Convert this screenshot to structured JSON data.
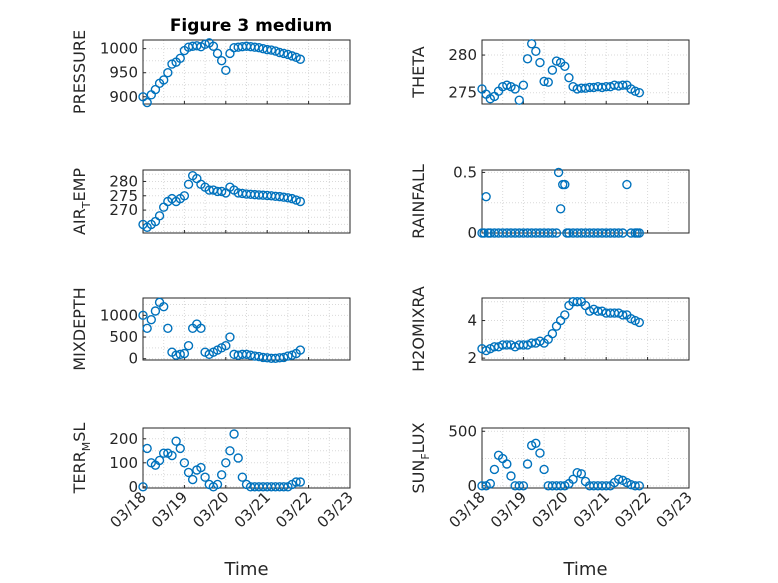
{
  "figure_title": "Figure 3 medium",
  "colors": {
    "marker": "#0072bd",
    "axes": "#262626",
    "grid": "#d9d9d9"
  },
  "chart_data": [
    {
      "id": "pressure",
      "type": "scatter",
      "title": "Figure 3 medium",
      "ylabel": {
        "main": "PRESSURE",
        "sub": "",
        "rest": ""
      },
      "xlabel": "",
      "xlim": [
        0,
        5
      ],
      "ylim": [
        885,
        1018
      ],
      "yticks": [
        900,
        950,
        1000
      ],
      "ytick_labels": [
        "900",
        "950",
        "1000"
      ],
      "xticks": [
        0,
        1,
        2,
        3,
        4,
        5
      ],
      "xtick_labels": [],
      "grid": true,
      "x": [
        0,
        0.1,
        0.2,
        0.3,
        0.4,
        0.5,
        0.6,
        0.7,
        0.8,
        0.9,
        1.0,
        1.1,
        1.2,
        1.3,
        1.4,
        1.5,
        1.6,
        1.7,
        1.8,
        1.9,
        2.0,
        2.1,
        2.2,
        2.3,
        2.4,
        2.5,
        2.6,
        2.7,
        2.8,
        2.9,
        3.0,
        3.1,
        3.2,
        3.3,
        3.4,
        3.5,
        3.6,
        3.7,
        3.8
      ],
      "y": [
        900,
        888,
        904,
        915,
        928,
        935,
        950,
        968,
        972,
        980,
        996,
        1003,
        1005,
        1006,
        1004,
        1009,
        1012,
        1005,
        990,
        975,
        955,
        990,
        1002,
        1003,
        1004,
        1005,
        1004,
        1003,
        1002,
        1000,
        998,
        997,
        995,
        992,
        990,
        988,
        985,
        982,
        978
      ]
    },
    {
      "id": "theta",
      "type": "scatter",
      "ylabel": {
        "main": "THETA",
        "sub": "",
        "rest": ""
      },
      "xlabel": "",
      "xlim": [
        0,
        5
      ],
      "ylim": [
        273.5,
        282
      ],
      "yticks": [
        275,
        280
      ],
      "ytick_labels": [
        "275",
        "280"
      ],
      "xticks": [
        0,
        1,
        2,
        3,
        4,
        5
      ],
      "xtick_labels": [],
      "grid": true,
      "x": [
        0,
        0.1,
        0.2,
        0.3,
        0.4,
        0.5,
        0.6,
        0.7,
        0.8,
        0.9,
        1.0,
        1.1,
        1.2,
        1.3,
        1.4,
        1.5,
        1.6,
        1.7,
        1.8,
        1.9,
        2.0,
        2.1,
        2.2,
        2.3,
        2.4,
        2.5,
        2.6,
        2.7,
        2.8,
        2.9,
        3.0,
        3.1,
        3.2,
        3.3,
        3.4,
        3.5,
        3.6,
        3.7,
        3.8
      ],
      "y": [
        275.5,
        274.8,
        274.2,
        274.5,
        275.2,
        275.8,
        276.0,
        275.8,
        275.5,
        274.0,
        276.0,
        279.5,
        281.5,
        280.5,
        279.0,
        276.5,
        276.4,
        278.0,
        279.2,
        279.0,
        278.5,
        277.0,
        275.8,
        275.5,
        275.6,
        275.6,
        275.7,
        275.7,
        275.8,
        275.7,
        275.8,
        275.8,
        276.0,
        275.9,
        276.0,
        276.0,
        275.5,
        275.2,
        275.0
      ]
    },
    {
      "id": "air_temp",
      "type": "scatter",
      "ylabel": {
        "main": "AIR",
        "sub": "T",
        "rest": "EMP"
      },
      "xlabel": "",
      "xlim": [
        0,
        5
      ],
      "ylim": [
        262,
        284
      ],
      "yticks": [
        270,
        275,
        280
      ],
      "ytick_labels": [
        "270",
        "275",
        "280"
      ],
      "xticks": [
        0,
        1,
        2,
        3,
        4,
        5
      ],
      "xtick_labels": [],
      "grid": true,
      "x": [
        0,
        0.1,
        0.2,
        0.3,
        0.4,
        0.5,
        0.6,
        0.7,
        0.8,
        0.9,
        1.0,
        1.1,
        1.2,
        1.3,
        1.4,
        1.5,
        1.6,
        1.7,
        1.8,
        1.9,
        2.0,
        2.1,
        2.2,
        2.3,
        2.4,
        2.5,
        2.6,
        2.7,
        2.8,
        2.9,
        3.0,
        3.1,
        3.2,
        3.3,
        3.4,
        3.5,
        3.6,
        3.7,
        3.8
      ],
      "y": [
        265,
        264,
        265,
        266,
        268,
        271,
        273,
        274,
        273,
        274,
        275,
        279,
        282,
        281,
        279,
        278,
        277,
        277,
        276.5,
        276.5,
        276,
        278,
        277,
        276,
        275.8,
        275.6,
        275.5,
        275.4,
        275.3,
        275.2,
        275.1,
        275.0,
        274.8,
        274.7,
        274.5,
        274.3,
        274.0,
        273.5,
        273
      ]
    },
    {
      "id": "rainfall",
      "type": "scatter",
      "ylabel": {
        "main": "RAINFALL",
        "sub": "",
        "rest": ""
      },
      "xlabel": "",
      "xlim": [
        0,
        5
      ],
      "ylim": [
        0,
        0.52
      ],
      "yticks": [
        0,
        0.5
      ],
      "ytick_labels": [
        "0",
        "0.5"
      ],
      "xticks": [
        0,
        1,
        2,
        3,
        4,
        5
      ],
      "xtick_labels": [],
      "grid": true,
      "x": [
        0,
        0.05,
        0.1,
        0.15,
        0.2,
        0.3,
        0.4,
        0.5,
        0.6,
        0.7,
        0.8,
        0.9,
        1.0,
        1.1,
        1.2,
        1.3,
        1.4,
        1.5,
        1.6,
        1.7,
        1.8,
        1.85,
        1.9,
        1.95,
        2.0,
        2.05,
        2.1,
        2.2,
        2.3,
        2.4,
        2.5,
        2.6,
        2.7,
        2.8,
        2.9,
        3.0,
        3.1,
        3.2,
        3.3,
        3.4,
        3.5,
        3.6,
        3.7,
        3.75,
        3.8
      ],
      "y": [
        0,
        0,
        0.3,
        0,
        0,
        0,
        0,
        0,
        0,
        0,
        0,
        0,
        0,
        0,
        0,
        0,
        0,
        0,
        0,
        0,
        0,
        0.5,
        0.2,
        0.4,
        0.4,
        0,
        0,
        0,
        0,
        0,
        0,
        0,
        0,
        0,
        0,
        0,
        0,
        0,
        0,
        0,
        0.4,
        0,
        0,
        0,
        0
      ]
    },
    {
      "id": "mixdepth",
      "type": "scatter",
      "ylabel": {
        "main": "MIXDEPTH",
        "sub": "",
        "rest": ""
      },
      "xlabel": "",
      "xlim": [
        0,
        5
      ],
      "ylim": [
        -30,
        1400
      ],
      "yticks": [
        0,
        500,
        1000
      ],
      "ytick_labels": [
        "0",
        "500",
        "1000"
      ],
      "xticks": [
        0,
        1,
        2,
        3,
        4,
        5
      ],
      "xtick_labels": [],
      "grid": true,
      "x": [
        0,
        0.1,
        0.2,
        0.3,
        0.4,
        0.5,
        0.6,
        0.7,
        0.8,
        0.9,
        1.0,
        1.1,
        1.2,
        1.3,
        1.4,
        1.5,
        1.6,
        1.7,
        1.8,
        1.9,
        2.0,
        2.1,
        2.2,
        2.3,
        2.4,
        2.5,
        2.6,
        2.7,
        2.8,
        2.9,
        3.0,
        3.1,
        3.2,
        3.3,
        3.4,
        3.5,
        3.6,
        3.7,
        3.8
      ],
      "y": [
        1000,
        700,
        900,
        1100,
        1300,
        1200,
        700,
        150,
        80,
        100,
        120,
        300,
        700,
        800,
        700,
        150,
        100,
        150,
        200,
        250,
        300,
        500,
        100,
        80,
        100,
        100,
        80,
        60,
        50,
        30,
        20,
        10,
        10,
        20,
        30,
        60,
        80,
        120,
        200
      ]
    },
    {
      "id": "h2omixra",
      "type": "scatter",
      "ylabel": {
        "main": "H2OMIXRA",
        "sub": "",
        "rest": ""
      },
      "xlabel": "",
      "xlim": [
        0,
        5
      ],
      "ylim": [
        1.9,
        5.2
      ],
      "yticks": [
        2,
        4
      ],
      "ytick_labels": [
        "2",
        "4"
      ],
      "xticks": [
        0,
        1,
        2,
        3,
        4,
        5
      ],
      "xtick_labels": [],
      "grid": true,
      "x": [
        0,
        0.1,
        0.2,
        0.3,
        0.4,
        0.5,
        0.6,
        0.7,
        0.8,
        0.9,
        1.0,
        1.1,
        1.2,
        1.3,
        1.4,
        1.5,
        1.6,
        1.7,
        1.8,
        1.9,
        2.0,
        2.1,
        2.2,
        2.3,
        2.4,
        2.5,
        2.6,
        2.7,
        2.8,
        2.9,
        3.0,
        3.1,
        3.2,
        3.3,
        3.4,
        3.5,
        3.6,
        3.7,
        3.8
      ],
      "y": [
        2.5,
        2.4,
        2.5,
        2.6,
        2.6,
        2.7,
        2.7,
        2.7,
        2.6,
        2.7,
        2.7,
        2.7,
        2.8,
        2.8,
        2.9,
        2.8,
        3.0,
        3.3,
        3.7,
        4.0,
        4.3,
        4.8,
        5.0,
        5.0,
        5.0,
        4.8,
        4.5,
        4.6,
        4.5,
        4.5,
        4.4,
        4.4,
        4.4,
        4.4,
        4.3,
        4.3,
        4.1,
        4.0,
        3.9
      ]
    },
    {
      "id": "terr_msl",
      "type": "scatter",
      "ylabel": {
        "main": "TERR",
        "sub": "M",
        "rest": "SL"
      },
      "xlabel": "Time",
      "xlim": [
        0,
        5
      ],
      "ylim": [
        -5,
        245
      ],
      "yticks": [
        0,
        100,
        200
      ],
      "ytick_labels": [
        "0",
        "100",
        "200"
      ],
      "xticks": [
        0,
        1,
        2,
        3,
        4,
        5
      ],
      "xtick_labels": [
        "03/18",
        "03/19",
        "03/20",
        "03/21",
        "03/22",
        "03/23"
      ],
      "grid": true,
      "x": [
        0,
        0.1,
        0.2,
        0.3,
        0.4,
        0.5,
        0.6,
        0.7,
        0.8,
        0.9,
        1.0,
        1.1,
        1.2,
        1.3,
        1.4,
        1.5,
        1.6,
        1.7,
        1.8,
        1.9,
        2.0,
        2.1,
        2.2,
        2.3,
        2.4,
        2.5,
        2.6,
        2.7,
        2.8,
        2.9,
        3.0,
        3.1,
        3.2,
        3.3,
        3.4,
        3.5,
        3.6,
        3.7,
        3.8
      ],
      "y": [
        0,
        160,
        100,
        90,
        110,
        140,
        140,
        130,
        190,
        160,
        100,
        60,
        30,
        70,
        80,
        40,
        10,
        0,
        10,
        50,
        100,
        150,
        220,
        120,
        40,
        10,
        0,
        0,
        0,
        0,
        0,
        0,
        0,
        0,
        0,
        0,
        10,
        20,
        20
      ]
    },
    {
      "id": "sun_flux",
      "type": "scatter",
      "ylabel": {
        "main": "SUN",
        "sub": "F",
        "rest": "LUX"
      },
      "xlabel": "Time",
      "xlim": [
        0,
        5
      ],
      "ylim": [
        -20,
        530
      ],
      "yticks": [
        0,
        500
      ],
      "ytick_labels": [
        "0",
        "500"
      ],
      "xticks": [
        0,
        1,
        2,
        3,
        4,
        5
      ],
      "xtick_labels": [
        "03/18",
        "03/19",
        "03/20",
        "03/21",
        "03/22",
        "03/23"
      ],
      "grid": true,
      "x": [
        0,
        0.1,
        0.2,
        0.3,
        0.4,
        0.5,
        0.6,
        0.7,
        0.8,
        0.9,
        1.0,
        1.1,
        1.2,
        1.3,
        1.4,
        1.5,
        1.6,
        1.7,
        1.8,
        1.9,
        2.0,
        2.1,
        2.2,
        2.3,
        2.4,
        2.5,
        2.6,
        2.7,
        2.8,
        2.9,
        3.0,
        3.1,
        3.2,
        3.3,
        3.4,
        3.5,
        3.6,
        3.7,
        3.8
      ],
      "y": [
        0,
        0,
        20,
        150,
        280,
        250,
        200,
        90,
        0,
        0,
        0,
        200,
        370,
        390,
        300,
        150,
        0,
        0,
        0,
        0,
        0,
        20,
        60,
        120,
        110,
        40,
        0,
        0,
        0,
        0,
        0,
        0,
        30,
        60,
        50,
        30,
        10,
        0,
        0
      ]
    }
  ]
}
